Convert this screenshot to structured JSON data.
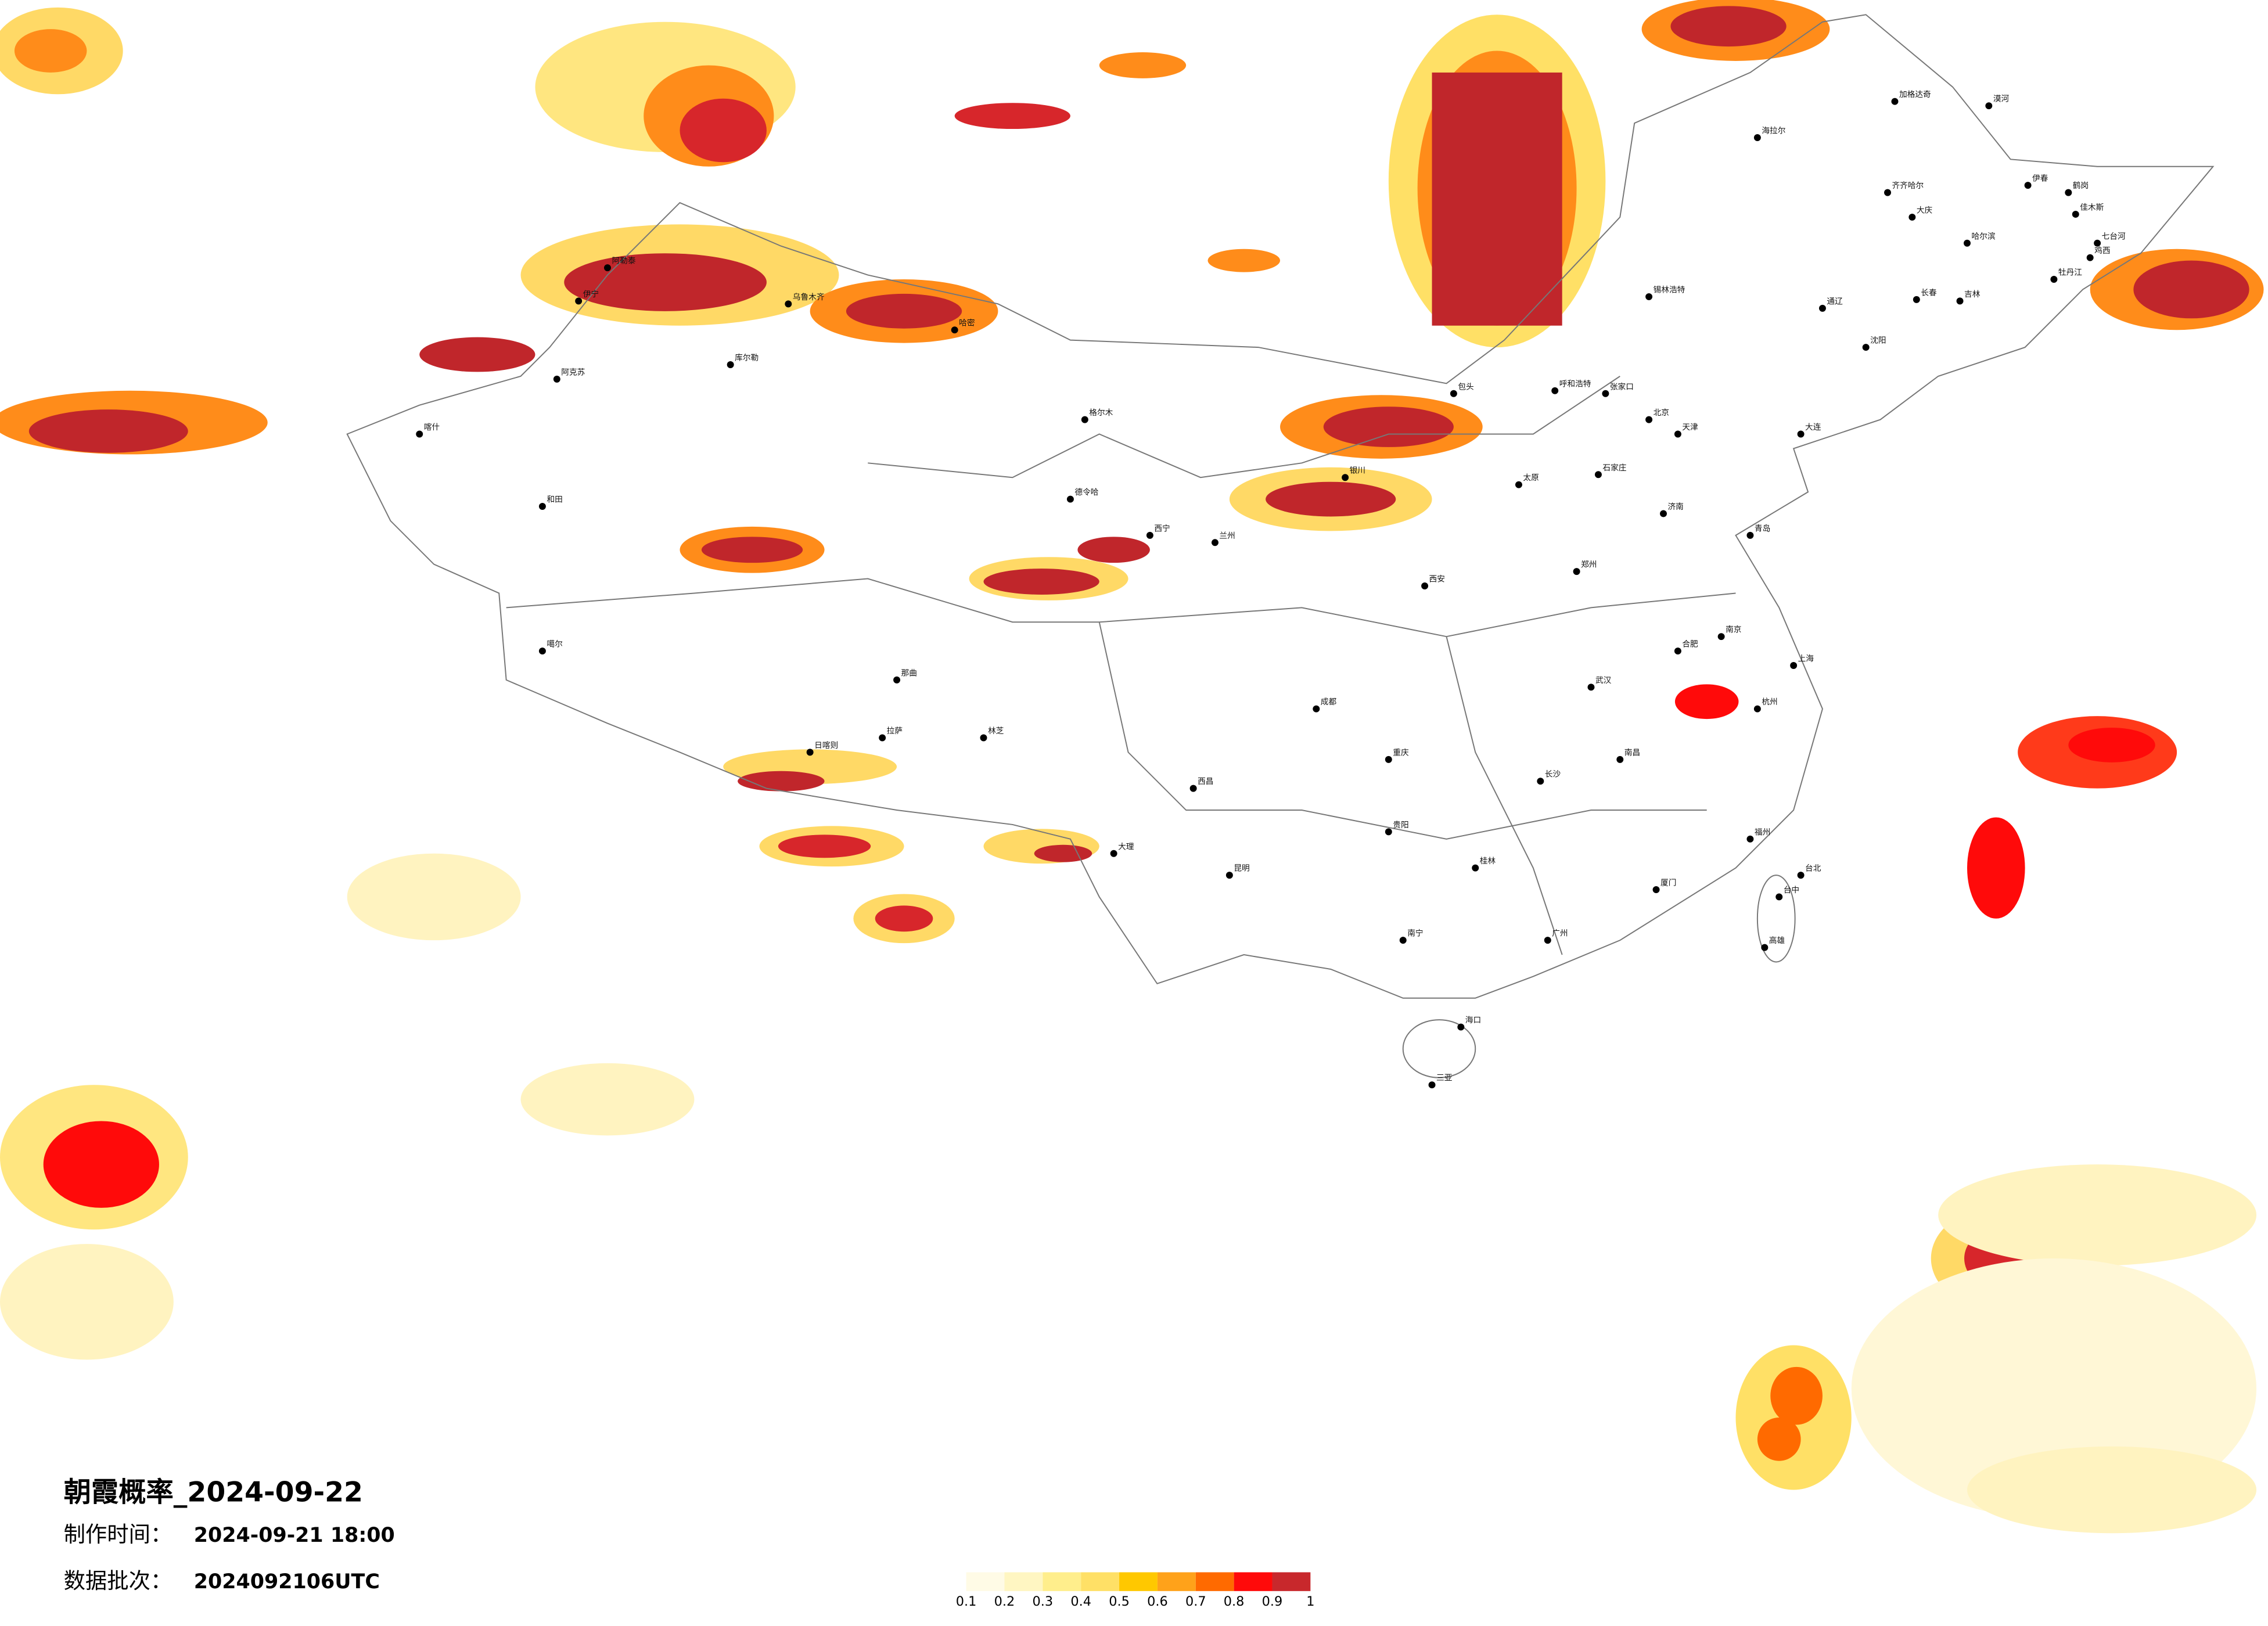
{
  "header": {
    "title": "朝霞概率_2024-09-22",
    "made_label": "制作时间：",
    "made_time": "2024-09-21 18:00",
    "batch_label": "数据批次：",
    "batch": "2024092106UTC"
  },
  "legend": {
    "ticks": [
      0.1,
      0.2,
      0.3,
      0.4,
      0.5,
      0.6,
      0.7,
      0.8,
      0.9,
      1
    ],
    "colors": [
      "#fffbe6",
      "#fff6c2",
      "#ffee8c",
      "#ffe066",
      "#ffc800",
      "#ffa21a",
      "#ff6a00",
      "#ff0a0a",
      "#c8282c"
    ]
  },
  "cities": [
    "漠河",
    "加格达奇",
    "海拉尔",
    "齐齐哈尔",
    "大庆",
    "伊春",
    "哈尔滨",
    "鹤岗",
    "佳木斯",
    "七台河",
    "鸡西",
    "牡丹江",
    "长春",
    "吉林",
    "通辽",
    "锡林浩特",
    "呼和浩特",
    "包头",
    "张家口",
    "北京",
    "天津",
    "石家庄",
    "太原",
    "济南",
    "郑州",
    "西安",
    "兰州",
    "西宁",
    "银川",
    "乌鲁木齐",
    "喀什",
    "和田",
    "拉萨",
    "成都",
    "重庆",
    "贵阳",
    "昆明",
    "南宁",
    "广州",
    "长沙",
    "武汉",
    "南昌",
    "合肥",
    "南京",
    "上海",
    "杭州",
    "福州",
    "台北",
    "台中",
    "高雄",
    "海口",
    "三亚",
    "阿勒泰",
    "伊宁",
    "库尔勒",
    "阿克苏",
    "哈密",
    "格尔木",
    "德令哈",
    "噶尔",
    "那曲",
    "日喀则",
    "林芝",
    "大理",
    "西昌",
    "桂林",
    "厦门",
    "青岛",
    "大连",
    "沈阳"
  ]
}
